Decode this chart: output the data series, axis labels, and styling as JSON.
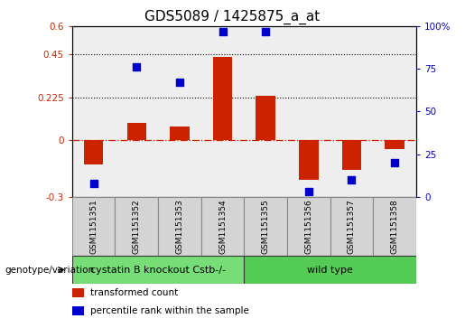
{
  "title": "GDS5089 / 1425875_a_at",
  "samples": [
    "GSM1151351",
    "GSM1151352",
    "GSM1151353",
    "GSM1151354",
    "GSM1151355",
    "GSM1151356",
    "GSM1151357",
    "GSM1151358"
  ],
  "transformed_count": [
    -0.13,
    0.09,
    0.07,
    0.44,
    0.235,
    -0.21,
    -0.16,
    -0.05
  ],
  "percentile_rank": [
    8,
    76,
    67,
    97,
    97,
    3,
    10,
    20
  ],
  "ylim_left": [
    -0.3,
    0.6
  ],
  "ylim_right": [
    0,
    100
  ],
  "yticks_left": [
    -0.3,
    0.0,
    0.225,
    0.45,
    0.6
  ],
  "ytick_labels_left": [
    "-0.3",
    "0",
    "0.225",
    "0.45",
    "0.6"
  ],
  "yticks_right": [
    0,
    25,
    50,
    75,
    100
  ],
  "ytick_labels_right": [
    "0",
    "25",
    "50",
    "75",
    "100%"
  ],
  "hlines": [
    0.225,
    0.45
  ],
  "zero_line": 0.0,
  "bar_color": "#cc2200",
  "dot_color": "#0000cc",
  "bar_width": 0.45,
  "dot_size": 40,
  "groups": [
    {
      "label": "cystatin B knockout Cstb-/-",
      "indices": [
        0,
        1,
        2,
        3
      ],
      "color": "#77dd77"
    },
    {
      "label": "wild type",
      "indices": [
        4,
        5,
        6,
        7
      ],
      "color": "#77dd77"
    }
  ],
  "group_label": "genotype/variation",
  "legend_entries": [
    {
      "label": "transformed count",
      "color": "#cc2200"
    },
    {
      "label": "percentile rank within the sample",
      "color": "#0000cc"
    }
  ],
  "bg_color": "#ffffff",
  "plot_bg": "#eeeeee",
  "title_fontsize": 11,
  "tick_fontsize": 7.5,
  "sample_fontsize": 6.5
}
